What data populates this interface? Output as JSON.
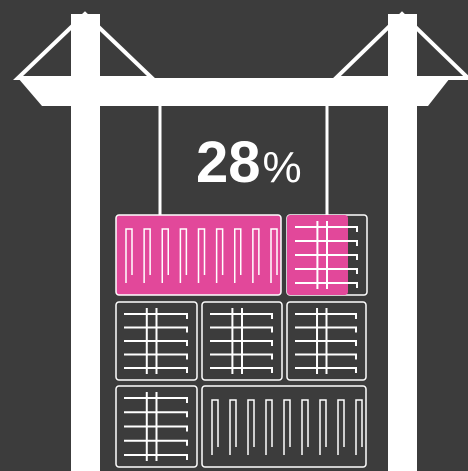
{
  "label": {
    "number": "28",
    "unit": "%"
  }
}
